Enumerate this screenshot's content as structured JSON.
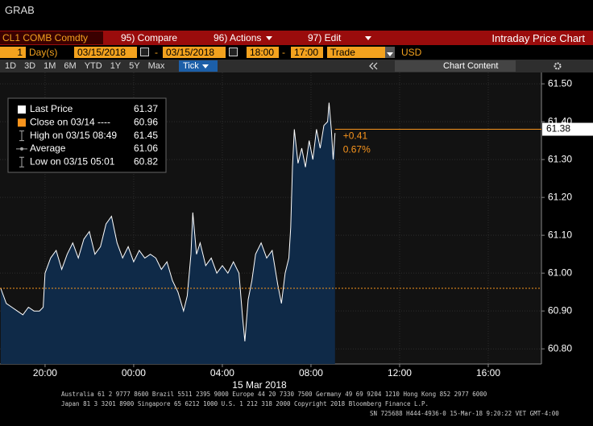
{
  "window": {
    "title": "GRAB"
  },
  "toolbar": {
    "security": "CL1 COMB Comdty",
    "compare": "95) Compare",
    "actions": "96) Actions",
    "edit": "97) Edit",
    "view_title": "Intraday Price Chart"
  },
  "range": {
    "count": "1",
    "unit": "Day(s)",
    "start_date": "03/15/2018",
    "separator": "-",
    "end_date": "03/15/2018",
    "start_time": "18:00",
    "end_time": "17:00",
    "field": "Trade",
    "currency": "USD"
  },
  "periods": [
    "1D",
    "3D",
    "1M",
    "6M",
    "YTD",
    "1Y",
    "5Y",
    "Max"
  ],
  "tick_mode": "Tick",
  "chart_content": "Chart Content",
  "footer": [
    "Australia 61 2 9777 8600 Brazil 5511 2395 9000 Europe 44 20 7330 7500 Germany 49 69 9204 1210 Hong Kong 852 2977 6000",
    "Japan 81 3 3201 8900        Singapore 65 6212 1000        U.S. 1 212 318 2000        Copyright 2018 Bloomberg Finance L.P.",
    "SN 725688 H444-4936-0 15-Mar-18  9:20:22 VET  GMT-4:00"
  ],
  "chart_data": {
    "type": "area",
    "color": "#ffffff",
    "area_color": "#0f2a48",
    "close_color": "#f7941d",
    "grid": true,
    "x": [
      "18:00",
      "18:15",
      "18:30",
      "18:45",
      "19:00",
      "19:15",
      "19:30",
      "19:45",
      "19:55",
      "20:00",
      "20:15",
      "20:30",
      "20:45",
      "21:00",
      "21:15",
      "21:30",
      "21:45",
      "22:00",
      "22:15",
      "22:30",
      "22:45",
      "23:00",
      "23:15",
      "23:30",
      "23:45",
      "00:00",
      "00:15",
      "00:30",
      "00:45",
      "01:00",
      "01:15",
      "01:30",
      "01:45",
      "02:00",
      "02:15",
      "02:25",
      "02:35",
      "02:40",
      "02:50",
      "03:00",
      "03:15",
      "03:30",
      "03:45",
      "04:00",
      "04:15",
      "04:30",
      "04:45",
      "04:55",
      "05:01",
      "05:10",
      "05:20",
      "05:30",
      "05:45",
      "06:00",
      "06:15",
      "06:30",
      "06:40",
      "06:50",
      "07:00",
      "07:05",
      "07:10",
      "07:15",
      "07:25",
      "07:35",
      "07:45",
      "07:55",
      "08:05",
      "08:15",
      "08:25",
      "08:35",
      "08:45",
      "08:49",
      "08:55",
      "09:00",
      "09:05"
    ],
    "values": [
      60.96,
      60.92,
      60.91,
      60.9,
      60.89,
      60.91,
      60.9,
      60.9,
      60.91,
      61.0,
      61.04,
      61.06,
      61.01,
      61.05,
      61.08,
      61.04,
      61.09,
      61.11,
      61.05,
      61.07,
      61.13,
      61.15,
      61.08,
      61.04,
      61.07,
      61.03,
      61.06,
      61.04,
      61.05,
      61.04,
      61.01,
      61.03,
      60.98,
      60.95,
      60.9,
      60.94,
      61.05,
      61.16,
      61.05,
      61.08,
      61.02,
      61.04,
      61.0,
      61.02,
      61.0,
      61.03,
      61.0,
      60.88,
      60.82,
      60.93,
      60.98,
      61.05,
      61.08,
      61.04,
      61.06,
      60.97,
      60.92,
      61.0,
      61.04,
      61.12,
      61.28,
      61.38,
      61.29,
      61.33,
      61.28,
      61.35,
      61.3,
      61.38,
      61.33,
      61.39,
      61.4,
      61.45,
      61.38,
      61.3,
      61.37
    ],
    "xlim": [
      "17:58",
      "18:24"
    ],
    "xticks": [
      "20:00",
      "00:00",
      "04:00",
      "08:00",
      "12:00",
      "16:00"
    ],
    "xlabel": "15 Mar 2018",
    "ylim": [
      60.76,
      61.53
    ],
    "yticks": [
      {
        "value": 61.5,
        "label": "61.50"
      },
      {
        "value": 61.4,
        "label": "61.40"
      },
      {
        "value": 61.3,
        "label": "61.30"
      },
      {
        "value": 61.2,
        "label": "61.20"
      },
      {
        "value": 61.1,
        "label": "61.10"
      },
      {
        "value": 61.0,
        "label": "61.00"
      },
      {
        "value": 60.9,
        "label": "60.90"
      },
      {
        "value": 60.8,
        "label": "60.80"
      }
    ],
    "close": 60.96,
    "last_marker": 61.38,
    "change": [
      "+0.41",
      "0.67%"
    ],
    "legend": [
      {
        "label": "Last Price",
        "value": 61.37
      },
      {
        "label": "Close on 03/14 ----",
        "value": 60.96
      },
      {
        "label": "High on 03/15 08:49",
        "value": 61.45
      },
      {
        "label": "Average",
        "value": 61.06
      },
      {
        "label": "Low on 03/15 05:01",
        "value": 60.82
      }
    ]
  }
}
